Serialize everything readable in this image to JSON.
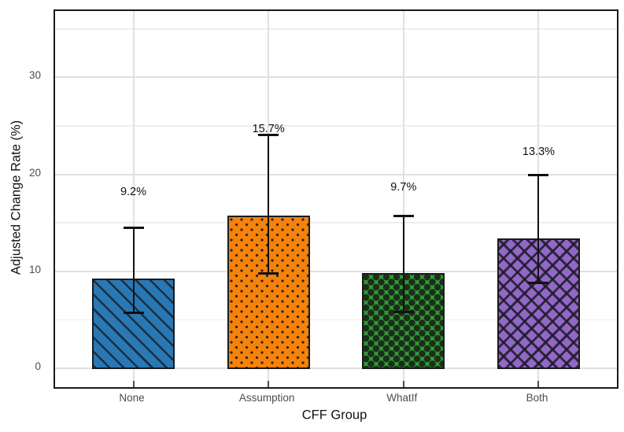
{
  "chart_data": {
    "type": "bar",
    "title": "",
    "xlabel": "CFF Group",
    "ylabel": "Adjusted Change Rate (%)",
    "categories": [
      "None",
      "Assumption",
      "WhatIf",
      "Both"
    ],
    "values": [
      9.2,
      15.7,
      9.7,
      13.3
    ],
    "bar_labels": [
      "9.2%",
      "15.7%",
      "9.7%",
      "13.3%"
    ],
    "error_low": [
      5.7,
      9.8,
      5.8,
      8.8
    ],
    "error_high": [
      14.5,
      24.1,
      15.7,
      19.9
    ],
    "label_offset": 9,
    "bar_colors": [
      "#2878b5",
      "#f5820b",
      "#2f9e32",
      "#9068c6"
    ],
    "hatch_styles": [
      "diagonal-stripes",
      "small-dots",
      "large-dots",
      "crosshatch"
    ],
    "y_ticks": [
      0,
      10,
      20,
      30
    ],
    "y_minor_ticks": [
      5,
      15,
      25,
      35
    ],
    "ylim": [
      -1.95,
      36.85
    ],
    "grid": "horizontal major+minor, vertical major at category centers",
    "legend": false,
    "colors": {
      "major_grid": "#e0e0e0",
      "minor_grid": "#eeeeee",
      "bar_edge": "#1a1a1a",
      "error_bar": "#111111",
      "tick_label": "#4d4d4d",
      "axis_title": "#111111",
      "panel_border": "#1a1a1a",
      "background": "#ffffff"
    }
  }
}
